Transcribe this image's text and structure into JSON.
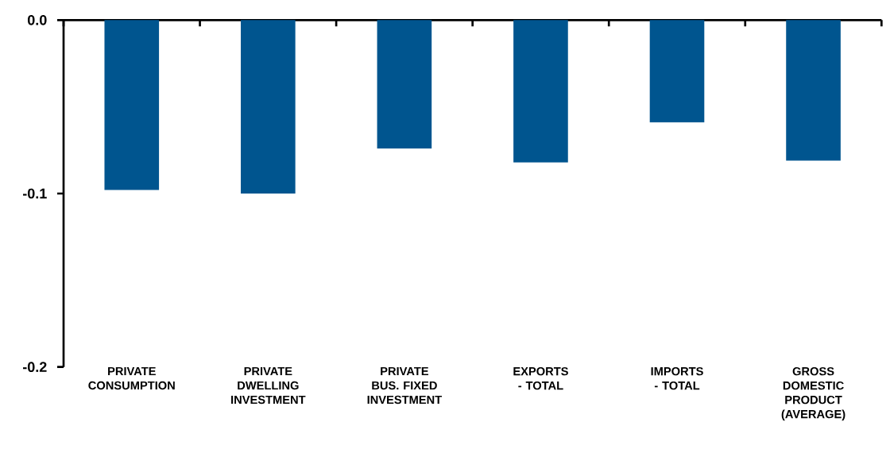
{
  "chart_data": {
    "type": "bar",
    "categories": [
      "PRIVATE CONSUMPTION",
      "PRIVATE DWELLING INVESTMENT",
      "PRIVATE BUS. FIXED INVESTMENT",
      "EXPORTS - TOTAL",
      "IMPORTS - TOTAL",
      "GROSS DOMESTIC PRODUCT (AVERAGE)"
    ],
    "values": [
      -0.098,
      -0.1,
      -0.074,
      -0.082,
      -0.059,
      -0.081
    ],
    "color": "#00558f",
    "ylim": [
      -0.2,
      0
    ],
    "yticks": [
      {
        "value": 0,
        "label": "0.0"
      },
      {
        "value": -0.1,
        "label": "-0.1"
      },
      {
        "value": -0.2,
        "label": "-0.2"
      }
    ]
  }
}
